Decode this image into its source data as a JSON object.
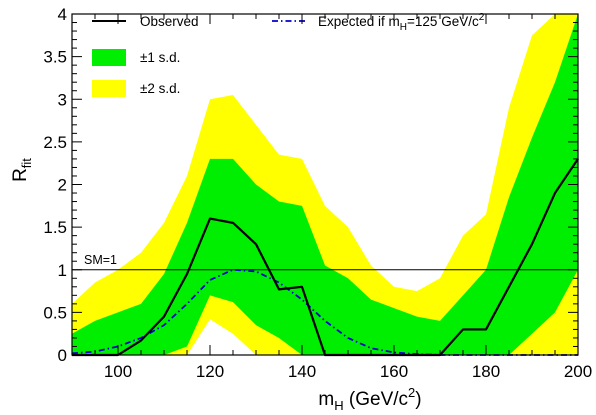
{
  "chart_data": {
    "type": "area",
    "title": "",
    "xlabel_main": "m",
    "xlabel_sub": "H",
    "xlabel_rest": " (GeV/c",
    "xlabel_sup": "2",
    "xlabel_end": ")",
    "ylabel_main": "R",
    "ylabel_sub": "fit",
    "xlim": [
      90,
      200
    ],
    "ylim": [
      0,
      4
    ],
    "x_ticks": [
      100,
      120,
      140,
      160,
      180,
      200
    ],
    "x_tick_labels": [
      "100",
      "120",
      "140",
      "160",
      "180",
      "200"
    ],
    "y_ticks": [
      0,
      0.5,
      1,
      1.5,
      2,
      2.5,
      3,
      3.5,
      4
    ],
    "y_tick_labels": [
      "0",
      "0.5",
      "1",
      "1.5",
      "2",
      "2.5",
      "3",
      "3.5",
      "4"
    ],
    "x": [
      90,
      95,
      100,
      105,
      110,
      115,
      120,
      125,
      130,
      135,
      140,
      145,
      150,
      155,
      160,
      165,
      170,
      175,
      180,
      185,
      190,
      195,
      200
    ],
    "observed": [
      0,
      0,
      0,
      0.17,
      0.45,
      0.95,
      1.6,
      1.55,
      1.3,
      0.77,
      0.8,
      0,
      0,
      0,
      0,
      0,
      0,
      0.3,
      0.3,
      0.8,
      1.3,
      1.9,
      2.3
    ],
    "expected": [
      0.02,
      0.04,
      0.1,
      0.2,
      0.35,
      0.6,
      0.88,
      1.0,
      0.98,
      0.85,
      0.65,
      0.4,
      0.2,
      0.08,
      0.03,
      0.01,
      0,
      0,
      0,
      0,
      0,
      0,
      0
    ],
    "band_1sd": {
      "lower": [
        0,
        0,
        0,
        0,
        0,
        0.1,
        0.7,
        0.62,
        0.35,
        0.2,
        0,
        0,
        0,
        0,
        0,
        0,
        0,
        0,
        0,
        0,
        0.25,
        0.5,
        1.0
      ],
      "upper": [
        0.25,
        0.4,
        0.5,
        0.6,
        0.95,
        1.55,
        2.3,
        2.3,
        2.0,
        1.8,
        1.75,
        1.05,
        0.9,
        0.65,
        0.55,
        0.45,
        0.4,
        0.7,
        1.0,
        1.85,
        2.55,
        3.2,
        4.0
      ]
    },
    "band_2sd": {
      "lower": [
        0,
        0,
        0,
        0,
        0,
        0,
        0.42,
        0.25,
        0,
        0,
        0,
        0,
        0,
        0,
        0,
        0,
        0,
        0,
        0,
        0,
        0,
        0,
        0
      ],
      "upper": [
        0.6,
        0.85,
        1.0,
        1.2,
        1.55,
        2.1,
        3.0,
        3.05,
        2.7,
        2.35,
        2.3,
        1.75,
        1.5,
        1.05,
        0.8,
        0.75,
        0.9,
        1.4,
        1.65,
        2.9,
        3.75,
        4.0,
        4.0
      ]
    },
    "reference_line": {
      "y": 1,
      "label": "SM=1"
    },
    "legend": {
      "observed": "Observed",
      "band_1sd": "±1 s.d.",
      "band_2sd": "±2 s.d.",
      "expected_pre": "Expected if m",
      "expected_sub": "H",
      "expected_mid": "=125 GeV/c",
      "expected_sup": "2"
    },
    "colors": {
      "band_1sd": "#00ee00",
      "band_2sd": "#ffff00",
      "observed": "#000000",
      "expected": "#0000cc",
      "reference": "#000000"
    },
    "grid": false,
    "legend_placement": "top-left"
  }
}
